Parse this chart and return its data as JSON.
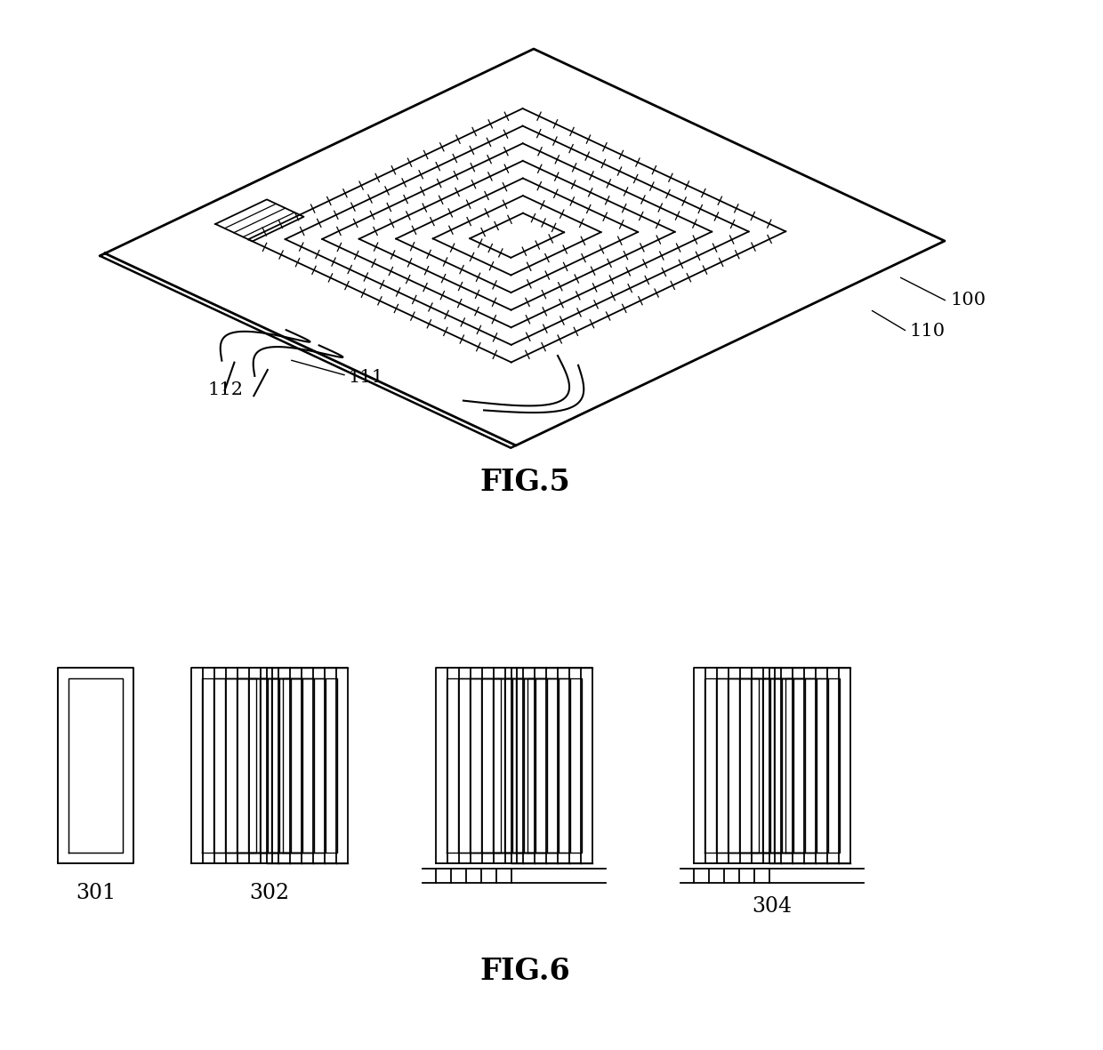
{
  "title_fig5": "FIG.5",
  "title_fig6": "FIG.6",
  "label_100": "100",
  "label_110": "110",
  "label_111": "111",
  "label_112": "112",
  "label_301": "301",
  "label_302": "302",
  "label_304": "304",
  "bg_color": "#ffffff",
  "line_color": "#000000",
  "fig_width": 12.4,
  "fig_height": 11.81
}
